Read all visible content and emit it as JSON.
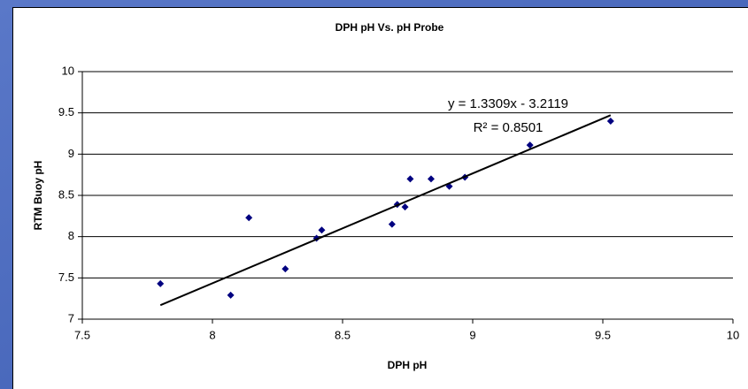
{
  "chart_data": {
    "type": "scatter",
    "title": "DPH pH Vs. pH Probe",
    "x_label": "DPH pH",
    "y_label": "RTM Buoy pH",
    "color": "#000080",
    "x": [
      7.8,
      8.07,
      8.14,
      8.28,
      8.4,
      8.42,
      8.69,
      8.71,
      8.74,
      8.76,
      8.84,
      8.91,
      8.97,
      9.22,
      9.53
    ],
    "values": [
      7.43,
      7.29,
      8.23,
      7.61,
      7.98,
      8.08,
      8.15,
      8.39,
      8.36,
      8.7,
      8.7,
      8.61,
      8.72,
      9.11,
      9.4
    ],
    "xlim": [
      7.5,
      10
    ],
    "xticks": [
      7.5,
      8,
      8.5,
      9,
      9.5,
      10
    ],
    "ylim": [
      7,
      10
    ],
    "yticks": [
      7,
      7.5,
      8,
      8.5,
      9,
      9.5,
      10
    ],
    "grid": true,
    "trendline": {
      "slope": 1.3309,
      "intercept": -3.2119,
      "equation": "y = 1.3309x - 3.2119",
      "r_squared": "R² = 0.8501"
    }
  }
}
